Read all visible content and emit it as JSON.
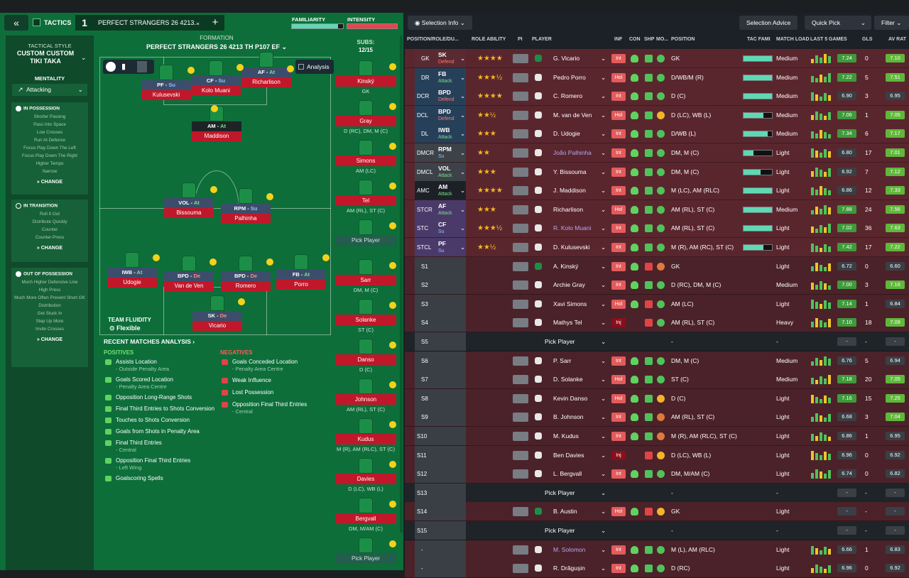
{
  "tactics": {
    "back": "«",
    "label": "TACTICS",
    "num": "1",
    "name": "PERFECT STRANGERS 26 4213...",
    "plus": "+",
    "familiarity": "FAMILIARITY",
    "intensity": "INTENSITY"
  },
  "sidebar": {
    "style_label": "TACTICAL STYLE",
    "style_name": "CUSTOM CUSTOM TIKI TAKA",
    "mentality_label": "MENTALITY",
    "mentality": "Attacking",
    "in_possession": {
      "title": "IN POSSESSION",
      "items": [
        "Shorter Passing",
        "Pass Into Space",
        "Low Crosses",
        "Run At Defence",
        "Focus Play Down The Left",
        "Focus Play Down The Right",
        "Higher Tempo",
        "Narrow"
      ],
      "change": "CHANGE"
    },
    "in_transition": {
      "title": "IN TRANSITION",
      "items": [
        "Roll It Out",
        "Distribute Quickly",
        "Counter",
        "Counter-Press"
      ],
      "change": "CHANGE"
    },
    "out_possession": {
      "title": "OUT OF POSSESSION",
      "items": [
        "Much Higher Defensive Line",
        "High Press",
        "Much More Often Prevent Short GK Distribution",
        "Get Stuck In",
        "Step Up More",
        "Invite Crosses"
      ],
      "change": "CHANGE"
    }
  },
  "formation": {
    "label": "FORMATION",
    "name": "PERFECT STRANGERS 26 4213 TH P107 EF",
    "subs_label": "SUBS:",
    "subs_count": "12/15",
    "analysis": "Analysis",
    "fluidity_label": "TEAM FLUIDITY",
    "fluidity": "Flexible"
  },
  "pitch_players": [
    {
      "role": "PF",
      "duty": "Su",
      "name": "Kulusevski"
    },
    {
      "role": "CF",
      "duty": "Su",
      "name": "Kolo Muani"
    },
    {
      "role": "AF",
      "duty": "At",
      "name": "Richarlison"
    },
    {
      "role": "AM",
      "duty": "At",
      "name": "Maddison"
    },
    {
      "role": "VOL",
      "duty": "At",
      "name": "Bissouma"
    },
    {
      "role": "RPM",
      "duty": "Su",
      "name": "Palhinha"
    },
    {
      "role": "IWB",
      "duty": "At",
      "name": "Udogie"
    },
    {
      "role": "BPD",
      "duty": "De",
      "name": "Van de Ven"
    },
    {
      "role": "BPD",
      "duty": "De",
      "name": "Romero"
    },
    {
      "role": "FB",
      "duty": "At",
      "name": "Porro"
    },
    {
      "role": "SK",
      "duty": "De",
      "name": "Vicario"
    }
  ],
  "subs": [
    {
      "name": "Kinský",
      "pos": "GK"
    },
    {
      "name": "Gray",
      "pos": "D (RC), DM, M (C)"
    },
    {
      "name": "Simons",
      "pos": "AM (LC)"
    },
    {
      "name": "Tel",
      "pos": "AM (RL), ST (C)"
    },
    {
      "name": "Pick Player",
      "pos": ""
    },
    {
      "name": "Sarr",
      "pos": "DM, M (C)"
    },
    {
      "name": "Solanke",
      "pos": "ST (C)"
    },
    {
      "name": "Danso",
      "pos": "D (C)"
    },
    {
      "name": "Johnson",
      "pos": "AM (RL), ST (C)"
    },
    {
      "name": "Kudus",
      "pos": "M (R), AM (RLC), ST (C)"
    },
    {
      "name": "Davies",
      "pos": "D (LC), WB (L)"
    },
    {
      "name": "Bergvall",
      "pos": "DM, M/AM (C)"
    },
    {
      "name": "Pick Player",
      "pos": ""
    }
  ],
  "recent": {
    "title": "RECENT MATCHES ANALYSIS ›",
    "positives_label": "POSITIVES",
    "negatives_label": "NEGATIVES",
    "positives": [
      {
        "t": "Assists Location",
        "s": "- Outside Penalty Area"
      },
      {
        "t": "Goals Scored Location",
        "s": "- Penalty Area Centre"
      },
      {
        "t": "Opposition Long-Range Shots",
        "s": ""
      },
      {
        "t": "Final Third Entries to Shots Conversion",
        "s": ""
      },
      {
        "t": "Touches to Shots Conversion",
        "s": ""
      },
      {
        "t": "Goals from Shots in Penalty Area",
        "s": ""
      },
      {
        "t": "Final Third Entries",
        "s": "- Central"
      },
      {
        "t": "Opposition Final Third Entries",
        "s": "- Left Wing"
      },
      {
        "t": "Goalscoring Spells",
        "s": ""
      }
    ],
    "negatives": [
      {
        "t": "Goals Conceded Location",
        "s": "- Penalty Area Centre"
      },
      {
        "t": "Weak Influence",
        "s": ""
      },
      {
        "t": "Lost Possession",
        "s": ""
      },
      {
        "t": "Opposition Final Third Entries",
        "s": "- Central"
      }
    ]
  },
  "right": {
    "selection_info": "Selection Info",
    "selection_advice": "Selection Advice",
    "quick_pick": "Quick Pick",
    "filter": "Filter",
    "headers": {
      "pos": "POSITION/ROLE/DU...",
      "ability": "ROLE ABILITY",
      "pi": "PI",
      "player": "PLAYER",
      "inf": "INF",
      "con": "CON",
      "shp": "SHP",
      "mo": "MO...",
      "position": "POSITION",
      "tac": "TAC FAMI",
      "load": "MATCH LOAD",
      "last5": "LAST 5 GAMES",
      "gls": "GLS",
      "avrat": "AV RAT"
    },
    "rows": [
      {
        "slot": "GK",
        "role": "SK",
        "duty": "Defend",
        "stars": "★★★★",
        "player": "G. Vicario",
        "inf": "Int",
        "position": "GK",
        "load": "Medium",
        "r": "7.24",
        "gls": "0",
        "av": "7.10"
      },
      {
        "slot": "DR",
        "role": "FB",
        "duty": "Attack",
        "stars": "★★★½",
        "player": "Pedro Porro",
        "inf": "Hol",
        "position": "D/WB/M (R)",
        "load": "Medium",
        "r": "7.22",
        "gls": "5",
        "av": "7.51"
      },
      {
        "slot": "DCR",
        "role": "BPD",
        "duty": "Defend",
        "stars": "★★★★",
        "player": "C. Romero",
        "inf": "Int",
        "position": "D (C)",
        "load": "Medium",
        "r": "6.90",
        "gls": "3",
        "av": "6.95"
      },
      {
        "slot": "DCL",
        "role": "BPD",
        "duty": "Defend",
        "stars": "★★½",
        "player": "M. van de Ven",
        "inf": "Hol",
        "position": "D (LC), WB (L)",
        "load": "Medium",
        "r": "7.06",
        "gls": "1",
        "av": "7.05"
      },
      {
        "slot": "DL",
        "role": "IWB",
        "duty": "Attack",
        "stars": "★★★",
        "player": "D. Udogie",
        "inf": "Int",
        "position": "D/WB (L)",
        "load": "Medium",
        "r": "7.34",
        "gls": "6",
        "av": "7.17"
      },
      {
        "slot": "DMCR",
        "role": "RPM",
        "duty": "Su",
        "stars": "★★",
        "player": "João Palhinha",
        "inf": "Int",
        "position": "DM, M (C)",
        "load": "Light",
        "r": "6.80",
        "gls": "17",
        "av": "7.01"
      },
      {
        "slot": "DMCL",
        "role": "VOL",
        "duty": "Attack",
        "stars": "★★★",
        "player": "Y. Bissouma",
        "inf": "Int",
        "position": "DM, M (C)",
        "load": "Light",
        "r": "6.92",
        "gls": "7",
        "av": "7.12"
      },
      {
        "slot": "AMC",
        "role": "AM",
        "duty": "Attack",
        "stars": "★★★★",
        "player": "J. Maddison",
        "inf": "Int",
        "position": "M (LC), AM (RLC)",
        "load": "Light",
        "r": "6.86",
        "gls": "12",
        "av": "7.33"
      },
      {
        "slot": "STCR",
        "role": "AF",
        "duty": "Attack",
        "stars": "★★★",
        "player": "Richarlison",
        "inf": "Hol",
        "position": "AM (RL), ST (C)",
        "load": "Medium",
        "r": "7.88",
        "gls": "24",
        "av": "7.56"
      },
      {
        "slot": "STC",
        "role": "CF",
        "duty": "Su",
        "stars": "★★★½",
        "player": "R. Kolo Muani",
        "inf": "Int",
        "position": "AM (RL), ST (C)",
        "load": "Light",
        "r": "7.02",
        "gls": "36",
        "av": "7.63"
      },
      {
        "slot": "STCL",
        "role": "PF",
        "duty": "Su",
        "stars": "★★½",
        "player": "D. Kulusevski",
        "inf": "Int",
        "position": "M (R), AM (RC), ST (C)",
        "load": "Light",
        "r": "7.42",
        "gls": "17",
        "av": "7.22"
      },
      {
        "slot": "S1",
        "role": "",
        "duty": "",
        "stars": "",
        "player": "A. Kinský",
        "inf": "Int",
        "position": "GK",
        "load": "Light",
        "r": "6.72",
        "gls": "0",
        "av": "6.60"
      },
      {
        "slot": "S2",
        "role": "",
        "duty": "",
        "stars": "",
        "player": "Archie Gray",
        "inf": "Int",
        "position": "D (RC), DM, M (C)",
        "load": "Medium",
        "r": "7.00",
        "gls": "3",
        "av": "7.16"
      },
      {
        "slot": "S3",
        "role": "",
        "duty": "",
        "stars": "",
        "player": "Xavi Simons",
        "inf": "Hol",
        "position": "AM (LC)",
        "load": "Light",
        "r": "7.14",
        "gls": "1",
        "av": "6.84"
      },
      {
        "slot": "S4",
        "role": "",
        "duty": "",
        "stars": "",
        "player": "Mathys Tel",
        "inf": "Inj",
        "position": "AM (RL), ST (C)",
        "load": "Heavy",
        "r": "7.10",
        "gls": "18",
        "av": "7.09"
      },
      {
        "slot": "S5",
        "role": "",
        "duty": "",
        "stars": "",
        "player": "Pick Player",
        "inf": "",
        "position": "-",
        "load": "-",
        "r": "-",
        "gls": "-",
        "av": "-"
      },
      {
        "slot": "S6",
        "role": "",
        "duty": "",
        "stars": "",
        "player": "P. Sarr",
        "inf": "Int",
        "position": "DM, M (C)",
        "load": "Medium",
        "r": "6.76",
        "gls": "5",
        "av": "6.94"
      },
      {
        "slot": "S7",
        "role": "",
        "duty": "",
        "stars": "",
        "player": "D. Solanke",
        "inf": "Hol",
        "position": "ST (C)",
        "load": "Medium",
        "r": "7.18",
        "gls": "20",
        "av": "7.05"
      },
      {
        "slot": "S8",
        "role": "",
        "duty": "",
        "stars": "",
        "player": "Kevin Danso",
        "inf": "Hol",
        "position": "D (C)",
        "load": "Light",
        "r": "7.16",
        "gls": "15",
        "av": "7.25"
      },
      {
        "slot": "S9",
        "role": "",
        "duty": "",
        "stars": "",
        "player": "B. Johnson",
        "inf": "Int",
        "position": "AM (RL), ST (C)",
        "load": "Light",
        "r": "6.68",
        "gls": "3",
        "av": "7.04"
      },
      {
        "slot": "S10",
        "role": "",
        "duty": "",
        "stars": "",
        "player": "M. Kudus",
        "inf": "Int",
        "position": "M (R), AM (RLC), ST (C)",
        "load": "Light",
        "r": "6.86",
        "gls": "1",
        "av": "6.95"
      },
      {
        "slot": "S11",
        "role": "",
        "duty": "",
        "stars": "",
        "player": "Ben Davies",
        "inf": "Inj",
        "position": "D (LC), WB (L)",
        "load": "Light",
        "r": "6.96",
        "gls": "0",
        "av": "6.92"
      },
      {
        "slot": "S12",
        "role": "",
        "duty": "",
        "stars": "",
        "player": "L. Bergvall",
        "inf": "Int",
        "position": "DM, M/AM (C)",
        "load": "Light",
        "r": "6.74",
        "gls": "0",
        "av": "6.82"
      },
      {
        "slot": "S13",
        "role": "",
        "duty": "",
        "stars": "",
        "player": "Pick Player",
        "inf": "",
        "position": "-",
        "load": "-",
        "r": "-",
        "gls": "-",
        "av": "-"
      },
      {
        "slot": "S14",
        "role": "",
        "duty": "",
        "stars": "",
        "player": "B. Austin",
        "inf": "Hol",
        "position": "GK",
        "load": "Light",
        "r": "-",
        "gls": "-",
        "av": "-"
      },
      {
        "slot": "S15",
        "role": "",
        "duty": "",
        "stars": "",
        "player": "Pick Player",
        "inf": "",
        "position": "-",
        "load": "-",
        "r": "-",
        "gls": "-",
        "av": "-"
      },
      {
        "slot": "-",
        "role": "",
        "duty": "",
        "stars": "",
        "player": "M. Solomon",
        "inf": "Int",
        "position": "M (L), AM (RLC)",
        "load": "Light",
        "r": "6.66",
        "gls": "1",
        "av": "6.83"
      },
      {
        "slot": "-",
        "role": "",
        "duty": "",
        "stars": "",
        "player": "R. Drăgușin",
        "inf": "Int",
        "position": "D (RC)",
        "load": "Light",
        "r": "6.96",
        "gls": "0",
        "av": "6.92"
      }
    ]
  }
}
